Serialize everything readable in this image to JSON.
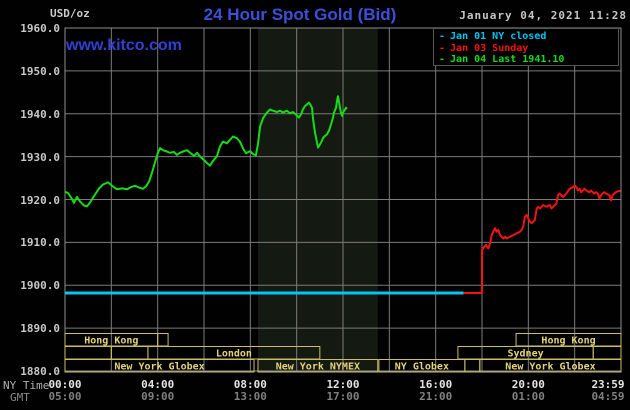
{
  "header": {
    "units_label": "USD/oz",
    "title": "24 Hour Spot Gold (Bid)",
    "datetime": "January 04, 2021 11:28",
    "watermark": "www.kitco.com"
  },
  "axes": {
    "ny_label": "NY Time",
    "gmt_label": "GMT"
  },
  "legend": {
    "items": [
      {
        "label": "Jan 01 NY closed",
        "color": "#00c6f0"
      },
      {
        "label": "Jan 03 Sunday",
        "color": "#f41212"
      },
      {
        "label": "Jan 04 Last 1941.10",
        "color": "#16dc16"
      }
    ]
  },
  "chart_data": {
    "type": "line",
    "title": "24 Hour Spot Gold (Bid)",
    "ylabel": "USD/oz",
    "y_axis": {
      "min": 1880,
      "max": 1960,
      "tick_step": 10,
      "ticks": [
        1960,
        1950,
        1940,
        1930,
        1920,
        1910,
        1900,
        1890,
        1880
      ]
    },
    "x_axis": {
      "range_hours": [
        0,
        24
      ],
      "gridline_step_hours": 2,
      "ticks": [
        {
          "t": 0,
          "ny": "00:00",
          "gmt": "05:00"
        },
        {
          "t": 4,
          "ny": "04:00",
          "gmt": "09:00"
        },
        {
          "t": 8,
          "ny": "08:00",
          "gmt": "13:00"
        },
        {
          "t": 12,
          "ny": "12:00",
          "gmt": "17:00"
        },
        {
          "t": 16,
          "ny": "16:00",
          "gmt": "21:00"
        },
        {
          "t": 20,
          "ny": "20:00",
          "gmt": "01:00"
        },
        {
          "t": 23.983,
          "ny": "23:59",
          "gmt": "04:59"
        }
      ]
    },
    "colors": {
      "grid": "#7b7b7b",
      "frame": "#8f8f8f",
      "band": "#141a12",
      "session": "#c9bd66",
      "session_text": "#e5d47a"
    },
    "nymex_band_hours": [
      8.33,
      13.5
    ],
    "sessions": [
      {
        "boxes": [
          {
            "label": "Hong Kong",
            "t": [
              0,
              4.0
            ]
          },
          {
            "label": "",
            "t": [
              4.0,
              4.45
            ]
          },
          {
            "label": "Hong Kong",
            "t": [
              19.47,
              24
            ]
          }
        ]
      },
      {
        "boxes": [
          {
            "label": "",
            "t": [
              0,
              2.0
            ]
          },
          {
            "label": "",
            "t": [
              2.0,
              3.58
            ]
          },
          {
            "label": "London",
            "t": [
              3.58,
              11.0
            ]
          },
          {
            "label": "Sydney",
            "t": [
              16.96,
              22.8
            ]
          },
          {
            "label": "",
            "t": [
              22.8,
              24
            ]
          }
        ]
      },
      {
        "boxes": [
          {
            "label": "New York Globex",
            "t": [
              0,
              8.16
            ]
          },
          {
            "label": "New York NYMEX",
            "t": [
              8.33,
              13.5
            ]
          },
          {
            "label": "NY Globex",
            "t": [
              13.55,
              17.26
            ]
          },
          {
            "label": "",
            "t": [
              17.26,
              17.9
            ]
          },
          {
            "label": "New York Globex",
            "t": [
              17.91,
              24
            ]
          }
        ]
      }
    ],
    "series": [
      {
        "name": "Jan 01 NY closed",
        "slug": "series-jan01-ny-closed",
        "color": "#00c6f0",
        "width": 3,
        "points": [
          [
            0,
            1898.2
          ],
          [
            17.2,
            1898.2
          ]
        ]
      },
      {
        "name": "Jan 03 Sunday",
        "slug": "series-jan03-sunday",
        "color": "#f41212",
        "width": 2,
        "points": [
          [
            17.2,
            1898.2
          ],
          [
            18.0,
            1898.2
          ],
          [
            18.0,
            1908.2
          ],
          [
            18.1,
            1909.0
          ],
          [
            18.17,
            1909.4
          ],
          [
            18.27,
            1908.6
          ],
          [
            18.35,
            1909.8
          ],
          [
            18.42,
            1911.7
          ],
          [
            18.56,
            1913.3
          ],
          [
            18.63,
            1912.5
          ],
          [
            18.7,
            1912.9
          ],
          [
            18.78,
            1911.7
          ],
          [
            18.85,
            1911.3
          ],
          [
            18.92,
            1910.9
          ],
          [
            19.0,
            1911.3
          ],
          [
            19.06,
            1910.9
          ],
          [
            19.2,
            1911.3
          ],
          [
            19.35,
            1911.7
          ],
          [
            19.49,
            1912.1
          ],
          [
            19.64,
            1912.5
          ],
          [
            19.71,
            1912.9
          ],
          [
            19.78,
            1913.7
          ],
          [
            19.85,
            1916.0
          ],
          [
            19.93,
            1916.4
          ],
          [
            20.0,
            1915.6
          ],
          [
            20.07,
            1914.8
          ],
          [
            20.14,
            1914.5
          ],
          [
            20.21,
            1914.8
          ],
          [
            20.28,
            1915.2
          ],
          [
            20.36,
            1917.9
          ],
          [
            20.43,
            1918.3
          ],
          [
            20.5,
            1917.9
          ],
          [
            20.64,
            1918.7
          ],
          [
            20.78,
            1918.3
          ],
          [
            20.93,
            1918.7
          ],
          [
            21.0,
            1917.9
          ],
          [
            21.07,
            1918.3
          ],
          [
            21.21,
            1919.1
          ],
          [
            21.28,
            1921.0
          ],
          [
            21.35,
            1921.4
          ],
          [
            21.42,
            1921.0
          ],
          [
            21.5,
            1920.6
          ],
          [
            21.57,
            1921.0
          ],
          [
            21.64,
            1921.4
          ],
          [
            21.78,
            1922.5
          ],
          [
            21.93,
            1922.9
          ],
          [
            22.0,
            1923.3
          ],
          [
            22.07,
            1922.9
          ],
          [
            22.14,
            1922.1
          ],
          [
            22.21,
            1922.5
          ],
          [
            22.28,
            1921.7
          ],
          [
            22.35,
            1922.1
          ],
          [
            22.42,
            1922.5
          ],
          [
            22.5,
            1922.1
          ],
          [
            22.64,
            1921.7
          ],
          [
            22.71,
            1922.1
          ],
          [
            22.78,
            1921.7
          ],
          [
            22.85,
            1921.4
          ],
          [
            22.92,
            1921.7
          ],
          [
            23.0,
            1921.4
          ],
          [
            23.07,
            1920.2
          ],
          [
            23.14,
            1921.0
          ],
          [
            23.21,
            1921.4
          ],
          [
            23.28,
            1921.7
          ],
          [
            23.35,
            1921.4
          ],
          [
            23.5,
            1921.0
          ],
          [
            23.57,
            1919.8
          ],
          [
            23.64,
            1921.0
          ],
          [
            23.71,
            1921.4
          ],
          [
            23.78,
            1921.7
          ],
          [
            23.85,
            1921.9
          ],
          [
            23.98,
            1922.0
          ]
        ]
      },
      {
        "name": "Jan 04",
        "slug": "series-jan04-current",
        "color": "#16dc16",
        "width": 2,
        "last": 1941.1,
        "points": [
          [
            0,
            1921.8
          ],
          [
            0.13,
            1921.5
          ],
          [
            0.26,
            1920.5
          ],
          [
            0.39,
            1919.2
          ],
          [
            0.52,
            1920.6
          ],
          [
            0.65,
            1919.5
          ],
          [
            0.82,
            1918.6
          ],
          [
            0.95,
            1918.4
          ],
          [
            1.12,
            1919.6
          ],
          [
            1.3,
            1921.2
          ],
          [
            1.47,
            1922.6
          ],
          [
            1.64,
            1923.5
          ],
          [
            1.86,
            1924.0
          ],
          [
            2.03,
            1923.2
          ],
          [
            2.24,
            1922.4
          ],
          [
            2.46,
            1922.6
          ],
          [
            2.68,
            1922.4
          ],
          [
            2.85,
            1922.9
          ],
          [
            3.02,
            1923.2
          ],
          [
            3.19,
            1922.8
          ],
          [
            3.37,
            1922.5
          ],
          [
            3.5,
            1923.1
          ],
          [
            3.63,
            1924.2
          ],
          [
            3.76,
            1926.3
          ],
          [
            3.88,
            1928.6
          ],
          [
            4.01,
            1930.9
          ],
          [
            4.1,
            1932.0
          ],
          [
            4.23,
            1931.5
          ],
          [
            4.4,
            1931.2
          ],
          [
            4.53,
            1930.9
          ],
          [
            4.7,
            1931.1
          ],
          [
            4.83,
            1930.4
          ],
          [
            4.96,
            1930.9
          ],
          [
            5.14,
            1931.3
          ],
          [
            5.27,
            1931.5
          ],
          [
            5.4,
            1930.9
          ],
          [
            5.57,
            1930.2
          ],
          [
            5.7,
            1930.9
          ],
          [
            5.83,
            1930.0
          ],
          [
            6.0,
            1929.2
          ],
          [
            6.13,
            1928.5
          ],
          [
            6.26,
            1927.9
          ],
          [
            6.39,
            1929.0
          ],
          [
            6.56,
            1930.1
          ],
          [
            6.69,
            1932.4
          ],
          [
            6.82,
            1933.5
          ],
          [
            6.99,
            1933.1
          ],
          [
            7.12,
            1933.9
          ],
          [
            7.25,
            1934.7
          ],
          [
            7.42,
            1934.3
          ],
          [
            7.55,
            1933.5
          ],
          [
            7.68,
            1932.0
          ],
          [
            7.81,
            1930.8
          ],
          [
            7.99,
            1931.3
          ],
          [
            8.11,
            1930.6
          ],
          [
            8.24,
            1930.3
          ],
          [
            8.33,
            1933.0
          ],
          [
            8.42,
            1937.0
          ],
          [
            8.55,
            1939.0
          ],
          [
            8.72,
            1940.3
          ],
          [
            8.85,
            1941.0
          ],
          [
            8.98,
            1940.7
          ],
          [
            9.15,
            1940.4
          ],
          [
            9.28,
            1940.7
          ],
          [
            9.41,
            1940.3
          ],
          [
            9.58,
            1940.7
          ],
          [
            9.71,
            1940.1
          ],
          [
            9.84,
            1940.4
          ],
          [
            10.01,
            1939.6
          ],
          [
            10.1,
            1939.1
          ],
          [
            10.19,
            1939.9
          ],
          [
            10.27,
            1941.0
          ],
          [
            10.36,
            1941.8
          ],
          [
            10.45,
            1942.2
          ],
          [
            10.53,
            1942.6
          ],
          [
            10.58,
            1942.2
          ],
          [
            10.66,
            1941.4
          ],
          [
            10.71,
            1938.7
          ],
          [
            10.79,
            1935.6
          ],
          [
            10.88,
            1933.2
          ],
          [
            10.92,
            1932.1
          ],
          [
            11.01,
            1932.9
          ],
          [
            11.09,
            1933.7
          ],
          [
            11.14,
            1934.4
          ],
          [
            11.22,
            1934.8
          ],
          [
            11.31,
            1935.2
          ],
          [
            11.39,
            1936.0
          ],
          [
            11.48,
            1937.5
          ],
          [
            11.57,
            1939.1
          ],
          [
            11.61,
            1940.3
          ],
          [
            11.7,
            1941.4
          ],
          [
            11.74,
            1943.0
          ],
          [
            11.78,
            1944.1
          ],
          [
            11.83,
            1942.6
          ],
          [
            11.87,
            1941.4
          ],
          [
            11.91,
            1940.3
          ],
          [
            11.96,
            1939.5
          ],
          [
            12.0,
            1940.3
          ],
          [
            12.09,
            1941.0
          ],
          [
            12.13,
            1941.4
          ],
          [
            12.17,
            1941.1
          ]
        ]
      }
    ]
  }
}
